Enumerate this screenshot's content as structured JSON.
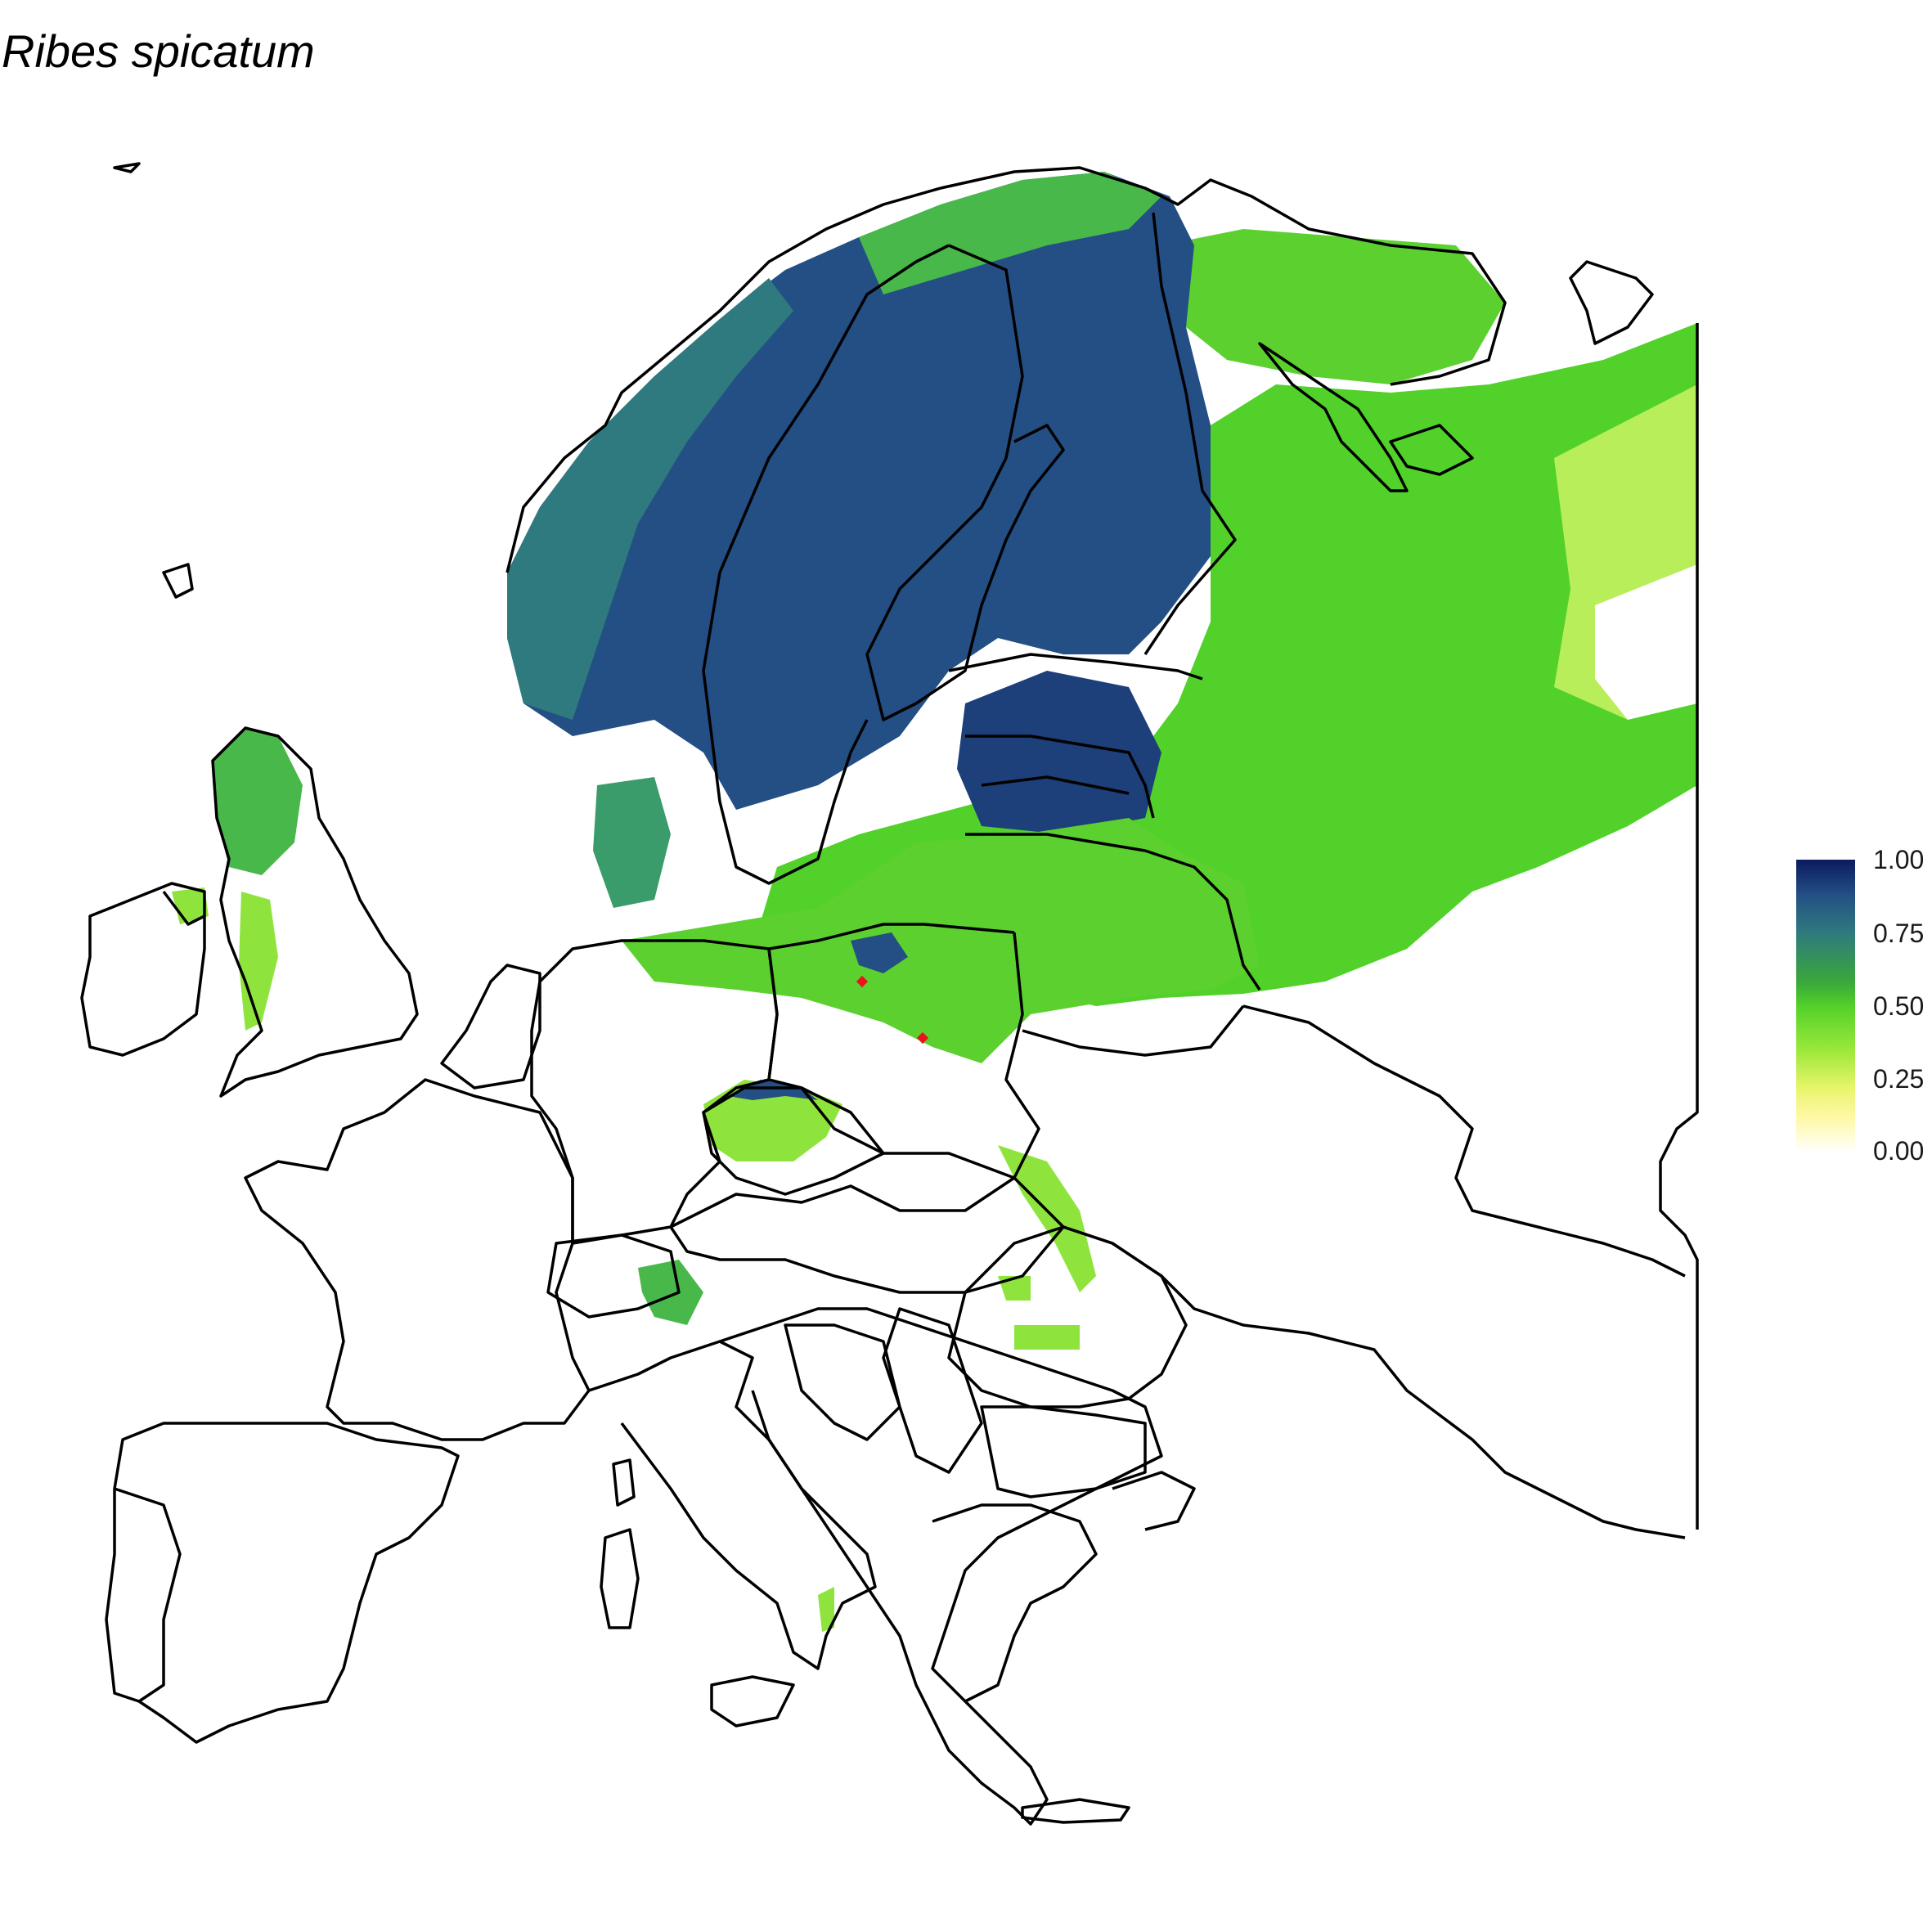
{
  "title": "Ribes spicatum",
  "legend": {
    "ticks": [
      "1.00",
      "0.75",
      "0.50",
      "0.25",
      "0.00"
    ],
    "colors": [
      "#0b1a5e",
      "#2f7a7e",
      "#52d12a",
      "#fff8a6",
      "#ffffff"
    ]
  },
  "colors": {
    "high": "#1d3f7a",
    "mid_high": "#2e6f86",
    "mid": "#49b84a",
    "low": "#8ee43d",
    "very_low": "#cdf27a",
    "border": "#000000",
    "occurrence": "#e8131b"
  },
  "occurrence_points_count_visible": 2
}
